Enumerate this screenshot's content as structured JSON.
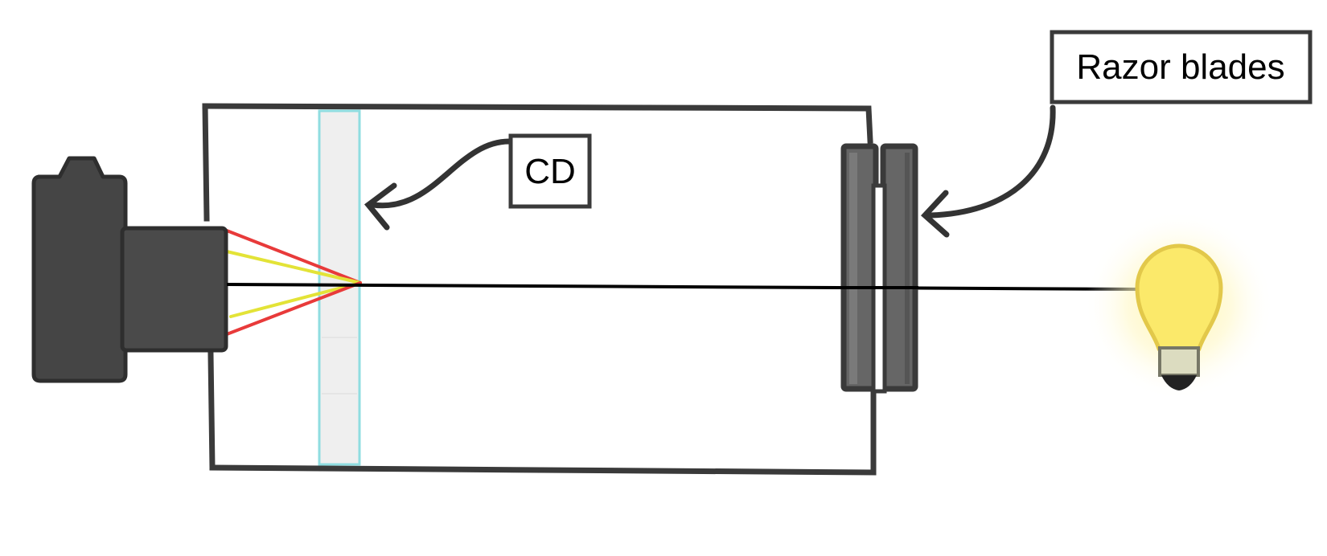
{
  "labels": {
    "cd": "CD",
    "razor_blades": "Razor blades"
  },
  "colors": {
    "outline": "#3a3a3a",
    "camera_body": "#454545",
    "blade_fill": "#666666",
    "cd_edge": "#8fdde0",
    "cd_fill": "#efefef",
    "ray_red": "#e83a3a",
    "ray_yellow": "#e3e337",
    "ray_main": "#000000",
    "bulb_glass": "#fbe96a",
    "bulb_outline": "#e2c84a",
    "bulb_glow": "#fff6b0",
    "bulb_base": "#dcdcc0"
  },
  "icons": {
    "camera": "camera-icon",
    "light_source": "light-bulb-icon"
  }
}
